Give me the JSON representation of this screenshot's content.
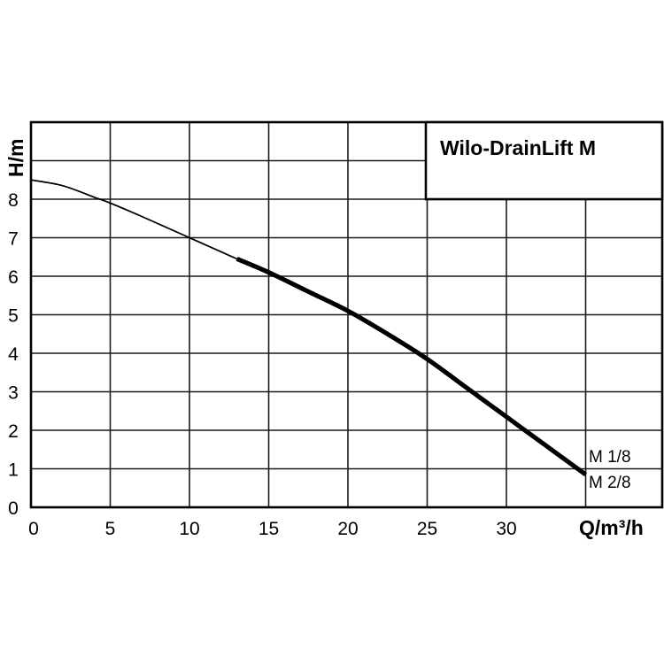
{
  "chart_data": {
    "type": "line",
    "title": "Wilo-DrainLift M",
    "xlabel": "Q/m³/h",
    "ylabel": "H/m",
    "xlim": [
      0,
      35
    ],
    "ylim": [
      0,
      10
    ],
    "x_ticks": [
      "0",
      "5",
      "10",
      "15",
      "20",
      "25",
      "30"
    ],
    "y_ticks": [
      "0",
      "1",
      "2",
      "3",
      "4",
      "5",
      "6",
      "7",
      "8"
    ],
    "grid": true,
    "series": [
      {
        "name": "M 1/8",
        "thin": {
          "x": [
            0,
            2,
            4,
            5,
            7,
            10,
            13
          ],
          "y": [
            8.5,
            8.35,
            8.05,
            7.9,
            7.55,
            7.0,
            6.45
          ]
        },
        "thick": {
          "x": [
            13,
            15,
            17.5,
            20,
            22.5,
            25,
            27.5,
            30,
            32.5,
            35
          ],
          "y": [
            6.45,
            6.1,
            5.6,
            5.1,
            4.5,
            3.85,
            3.1,
            2.35,
            1.6,
            0.85
          ]
        }
      },
      {
        "name": "M 2/8",
        "thin": {
          "x": [
            0,
            2,
            4,
            5,
            7,
            10,
            13
          ],
          "y": [
            8.5,
            8.35,
            8.05,
            7.9,
            7.55,
            7.0,
            6.45
          ]
        },
        "thick": {
          "x": [
            13,
            15,
            17.5,
            20,
            22.5,
            25,
            27.5,
            30,
            32.5,
            35
          ],
          "y": [
            6.45,
            6.1,
            5.6,
            5.1,
            4.5,
            3.85,
            3.1,
            2.35,
            1.6,
            0.85
          ]
        }
      }
    ]
  }
}
